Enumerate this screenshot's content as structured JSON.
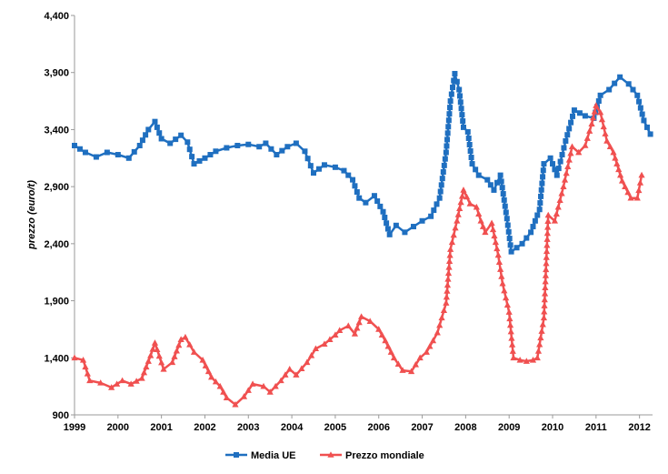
{
  "chart_data": {
    "type": "line",
    "ylabel": "prezzo (euro/t)",
    "xlim": [
      1999,
      2012.3
    ],
    "ylim": [
      900,
      4400
    ],
    "x_ticks": [
      "1999",
      "2000",
      "2001",
      "2002",
      "2003",
      "2004",
      "2005",
      "2006",
      "2007",
      "2008",
      "2009",
      "2010",
      "2011",
      "2012"
    ],
    "y_ticks": [
      "900",
      "1,400",
      "1,900",
      "2,400",
      "2,900",
      "3,400",
      "3,900",
      "4,400"
    ],
    "grid": false,
    "legend_position": "bottom",
    "series": [
      {
        "name": "Media UE",
        "color": "#1f6fc0",
        "marker": "square",
        "x": [
          1999.0,
          1999.25,
          1999.5,
          1999.75,
          2000.0,
          2000.25,
          2000.5,
          2000.7,
          2000.85,
          2001.0,
          2001.2,
          2001.45,
          2001.6,
          2001.75,
          2002.0,
          2002.25,
          2002.5,
          2002.75,
          2003.0,
          2003.25,
          2003.4,
          2003.65,
          2003.9,
          2004.1,
          2004.3,
          2004.5,
          2004.75,
          2005.0,
          2005.2,
          2005.4,
          2005.55,
          2005.7,
          2005.9,
          2006.1,
          2006.25,
          2006.4,
          2006.6,
          2006.8,
          2007.0,
          2007.2,
          2007.4,
          2007.55,
          2007.65,
          2007.75,
          2007.85,
          2007.95,
          2008.05,
          2008.15,
          2008.3,
          2008.5,
          2008.65,
          2008.8,
          2008.95,
          2009.05,
          2009.3,
          2009.5,
          2009.7,
          2009.8,
          2009.95,
          2010.1,
          2010.3,
          2010.5,
          2010.75,
          2010.95,
          2011.1,
          2011.3,
          2011.55,
          2011.75,
          2011.95,
          2012.1,
          2012.25
        ],
        "y": [
          3260,
          3200,
          3160,
          3200,
          3180,
          3150,
          3260,
          3400,
          3470,
          3320,
          3280,
          3350,
          3290,
          3100,
          3150,
          3210,
          3240,
          3260,
          3270,
          3250,
          3280,
          3180,
          3250,
          3280,
          3210,
          3020,
          3090,
          3070,
          3040,
          2960,
          2800,
          2760,
          2820,
          2680,
          2480,
          2560,
          2500,
          2550,
          2600,
          2640,
          2800,
          3200,
          3650,
          3890,
          3750,
          3420,
          3380,
          3100,
          3000,
          2960,
          2870,
          3000,
          2620,
          2330,
          2400,
          2500,
          2700,
          3100,
          3150,
          3000,
          3300,
          3570,
          3520,
          3500,
          3700,
          3750,
          3860,
          3800,
          3700,
          3480,
          3360
        ]
      },
      {
        "name": "Prezzo mondiale",
        "color": "#f05050",
        "marker": "triangle",
        "x": [
          1999.0,
          1999.2,
          1999.35,
          1999.6,
          1999.85,
          2000.1,
          2000.3,
          2000.55,
          2000.75,
          2000.85,
          2001.05,
          2001.25,
          2001.45,
          2001.55,
          2001.75,
          2001.95,
          2002.15,
          2002.35,
          2002.5,
          2002.7,
          2002.9,
          2003.1,
          2003.35,
          2003.5,
          2003.75,
          2003.95,
          2004.1,
          2004.35,
          2004.55,
          2004.75,
          2005.0,
          2005.1,
          2005.3,
          2005.45,
          2005.6,
          2005.8,
          2006.0,
          2006.15,
          2006.35,
          2006.55,
          2006.75,
          2006.95,
          2007.1,
          2007.25,
          2007.35,
          2007.45,
          2007.55,
          2007.65,
          2007.8,
          2007.95,
          2008.1,
          2008.25,
          2008.35,
          2008.45,
          2008.6,
          2008.75,
          2008.85,
          2009.0,
          2009.1,
          2009.25,
          2009.4,
          2009.55,
          2009.65,
          2009.8,
          2009.9,
          2010.05,
          2010.25,
          2010.45,
          2010.6,
          2010.75,
          2010.9,
          2011.0,
          2011.1,
          2011.25,
          2011.4,
          2011.6,
          2011.8,
          2011.95,
          2012.05
        ],
        "y": [
          1400,
          1380,
          1200,
          1180,
          1140,
          1200,
          1170,
          1220,
          1420,
          1530,
          1300,
          1360,
          1560,
          1580,
          1450,
          1380,
          1230,
          1150,
          1050,
          990,
          1060,
          1170,
          1150,
          1100,
          1200,
          1300,
          1250,
          1360,
          1480,
          1520,
          1600,
          1640,
          1680,
          1610,
          1760,
          1720,
          1650,
          1550,
          1400,
          1290,
          1280,
          1400,
          1450,
          1550,
          1620,
          1750,
          1880,
          2350,
          2600,
          2870,
          2750,
          2720,
          2600,
          2500,
          2580,
          2300,
          2050,
          1800,
          1400,
          1380,
          1370,
          1380,
          1400,
          1750,
          2650,
          2600,
          2900,
          3250,
          3200,
          3260,
          3450,
          3610,
          3550,
          3300,
          3200,
          2950,
          2800,
          2800,
          3000
        ]
      }
    ]
  }
}
